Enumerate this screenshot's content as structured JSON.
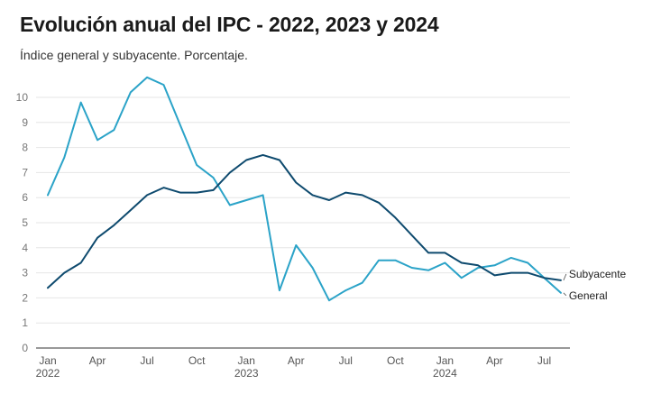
{
  "title": "Evolución anual del IPC - 2022, 2023 y 2024",
  "subtitle": "Índice general y subyacente. Porcentaje.",
  "colors": {
    "general": "#2ba3c8",
    "subyacente": "#0e4a6e",
    "grid": "#e6e6e6",
    "axis": "#333333"
  },
  "chart_data": {
    "type": "line",
    "title": "Evolución anual del IPC - 2022, 2023 y 2024",
    "subtitle": "Índice general y subyacente. Porcentaje.",
    "ylim": [
      0,
      10
    ],
    "yticks": [
      0,
      1,
      2,
      3,
      4,
      5,
      6,
      7,
      8,
      9,
      10
    ],
    "grid": true,
    "x": [
      "2022-01",
      "2022-02",
      "2022-03",
      "2022-04",
      "2022-05",
      "2022-06",
      "2022-07",
      "2022-08",
      "2022-09",
      "2022-10",
      "2022-11",
      "2022-12",
      "2023-01",
      "2023-02",
      "2023-03",
      "2023-04",
      "2023-05",
      "2023-06",
      "2023-07",
      "2023-08",
      "2023-09",
      "2023-10",
      "2023-11",
      "2023-12",
      "2024-01",
      "2024-02",
      "2024-03",
      "2024-04",
      "2024-05",
      "2024-06",
      "2024-07",
      "2024-08"
    ],
    "xtick_labels": [
      {
        "month": "Jan",
        "year": "2022",
        "index": 0
      },
      {
        "month": "Apr",
        "year": "",
        "index": 3
      },
      {
        "month": "Jul",
        "year": "",
        "index": 6
      },
      {
        "month": "Oct",
        "year": "",
        "index": 9
      },
      {
        "month": "Jan",
        "year": "2023",
        "index": 12
      },
      {
        "month": "Apr",
        "year": "",
        "index": 15
      },
      {
        "month": "Jul",
        "year": "",
        "index": 18
      },
      {
        "month": "Oct",
        "year": "",
        "index": 21
      },
      {
        "month": "Jan",
        "year": "2024",
        "index": 24
      },
      {
        "month": "Apr",
        "year": "",
        "index": 27
      },
      {
        "month": "Jul",
        "year": "",
        "index": 30
      }
    ],
    "series": [
      {
        "name": "General",
        "key": "general",
        "values": [
          6.1,
          7.6,
          9.8,
          8.3,
          8.7,
          10.2,
          10.8,
          10.5,
          8.9,
          7.3,
          6.8,
          5.7,
          5.9,
          6.1,
          2.3,
          4.1,
          3.2,
          1.9,
          2.3,
          2.6,
          3.5,
          3.5,
          3.2,
          3.1,
          3.4,
          2.8,
          3.2,
          3.3,
          3.6,
          3.4,
          2.8,
          2.2
        ]
      },
      {
        "name": "Subyacente",
        "key": "subyacente",
        "values": [
          2.4,
          3.0,
          3.4,
          4.4,
          4.9,
          5.5,
          6.1,
          6.4,
          6.2,
          6.2,
          6.3,
          7.0,
          7.5,
          7.7,
          7.5,
          6.6,
          6.1,
          5.9,
          6.2,
          6.1,
          5.8,
          5.2,
          4.5,
          3.8,
          3.8,
          3.4,
          3.3,
          2.9,
          3.0,
          3.0,
          2.8,
          2.7
        ]
      }
    ]
  }
}
